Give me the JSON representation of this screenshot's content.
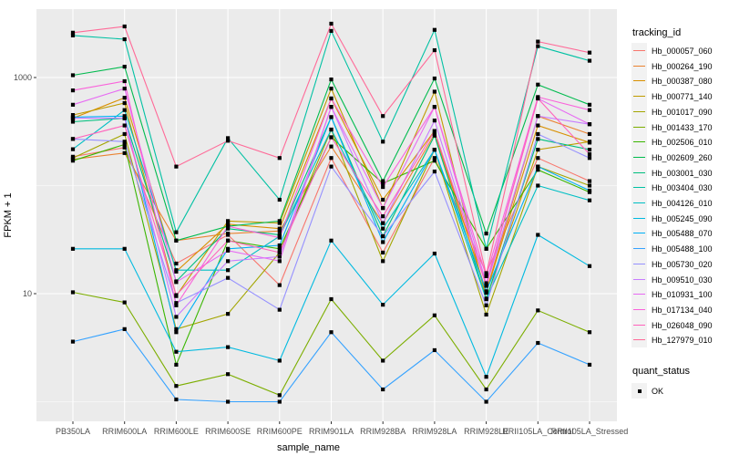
{
  "chart_data": {
    "type": "line",
    "xlabel": "sample_name",
    "ylabel": "FPKM + 1",
    "y_scale": "log10",
    "y_major_ticks": [
      {
        "value": 10,
        "label": "10"
      },
      {
        "value": 1000,
        "label": "1000"
      }
    ],
    "y_minor_gridlines": [
      1,
      100
    ],
    "point_color": "#000000",
    "panel_bg": "#ebebeb",
    "gridline_color": "#ffffff",
    "categories": [
      "PB350LA",
      "RRIM600LA",
      "RRIM600LE",
      "RRIM600SE",
      "RRIM600PE",
      "RRIM901LA",
      "RRIM928BA",
      "RRIM928LA",
      "RRIM928LE",
      "RRII105LA_Control",
      "RRII105LA_Stressed"
    ],
    "legend": {
      "color_title": "tracking_id",
      "shape_title": "quant_status",
      "shape_entries": [
        {
          "label": "OK"
        }
      ]
    },
    "series": [
      {
        "name": "Hb_000057_060",
        "color": "#F8766D",
        "values": [
          185,
          225,
          19,
          35,
          12,
          180,
          24,
          180,
          15.5,
          180,
          110
        ]
      },
      {
        "name": "Hb_000264_190",
        "color": "#EA8331",
        "values": [
          175,
          200,
          31,
          36,
          38,
          230,
          45,
          300,
          10.5,
          440,
          300
        ]
      },
      {
        "name": "Hb_000387_080",
        "color": "#D89000",
        "values": [
          420,
          650,
          16,
          44,
          40,
          640,
          74,
          320,
          10.2,
          360,
          250
        ]
      },
      {
        "name": "Hb_000771_140",
        "color": "#C09B00",
        "values": [
          450,
          580,
          9.5,
          47,
          45,
          790,
          62,
          740,
          9.0,
          215,
          255
        ]
      },
      {
        "name": "Hb_001017_090",
        "color": "#A3A500",
        "values": [
          180,
          300,
          4.7,
          6.5,
          24,
          330,
          20,
          215,
          6.4,
          150,
          100
        ]
      },
      {
        "name": "Hb_001433_170",
        "color": "#7CAE00",
        "values": [
          10.3,
          8.3,
          1.4,
          1.8,
          1.15,
          8.9,
          2.4,
          6.3,
          1.3,
          7.0,
          4.4
        ]
      },
      {
        "name": "Hb_002506_010",
        "color": "#39B600",
        "values": [
          170,
          240,
          2.2,
          31,
          26,
          280,
          105,
          170,
          26,
          140,
          87
        ]
      },
      {
        "name": "Hb_002609_260",
        "color": "#00BB4E",
        "values": [
          1050,
          1260,
          31,
          42,
          47,
          960,
          110,
          980,
          36,
          860,
          560
        ]
      },
      {
        "name": "Hb_003001_030",
        "color": "#00BF7D",
        "values": [
          390,
          420,
          13,
          40,
          35,
          430,
          34,
          290,
          8.9,
          270,
          215
        ]
      },
      {
        "name": "Hb_003404_030",
        "color": "#00C1A3",
        "values": [
          2450,
          2260,
          37,
          275,
          74,
          2700,
          255,
          2760,
          26,
          1950,
          1430
        ]
      },
      {
        "name": "Hb_004126_010",
        "color": "#00BFC4",
        "values": [
          217,
          500,
          16.5,
          16.5,
          34,
          330,
          40,
          215,
          8.9,
          100,
          73
        ]
      },
      {
        "name": "Hb_005245_090",
        "color": "#00BAE0",
        "values": [
          26,
          26,
          2.9,
          3.2,
          2.4,
          31,
          7.9,
          23.5,
          1.7,
          35,
          18
        ]
      },
      {
        "name": "Hb_005488_070",
        "color": "#00B0F6",
        "values": [
          430,
          440,
          4.4,
          26,
          28,
          430,
          30,
          215,
          10.5,
          150,
          90
        ]
      },
      {
        "name": "Hb_005488_100",
        "color": "#35A2FF",
        "values": [
          3.6,
          4.7,
          1.05,
          1.0,
          1.0,
          4.4,
          1.3,
          3.0,
          1.0,
          3.5,
          2.2
        ]
      },
      {
        "name": "Hb_005730_020",
        "color": "#9590FF",
        "values": [
          270,
          255,
          8.2,
          14,
          7.1,
          150,
          34,
          135,
          7.8,
          300,
          180
        ]
      },
      {
        "name": "Hb_009510_030",
        "color": "#C77CFF",
        "values": [
          420,
          420,
          6.1,
          20,
          22,
          535,
          45,
          400,
          11.8,
          440,
          370
        ]
      },
      {
        "name": "Hb_010931_100",
        "color": "#E76BF3",
        "values": [
          560,
          790,
          12.8,
          25,
          20,
          535,
          62,
          535,
          12.5,
          640,
          370
        ]
      },
      {
        "name": "Hb_017134_040",
        "color": "#FA62DB",
        "values": [
          760,
          925,
          7.8,
          42,
          33,
          640,
          97,
          535,
          14.5,
          660,
          500
        ]
      },
      {
        "name": "Hb_026048_090",
        "color": "#FF62BC",
        "values": [
          270,
          360,
          9.7,
          31,
          24,
          280,
          52,
          320,
          12.0,
          640,
          195
        ]
      },
      {
        "name": "Hb_127979_010",
        "color": "#FF6A98",
        "values": [
          2600,
          2970,
          150,
          260,
          180,
          3150,
          440,
          1790,
          15.0,
          2150,
          1700
        ]
      }
    ]
  }
}
